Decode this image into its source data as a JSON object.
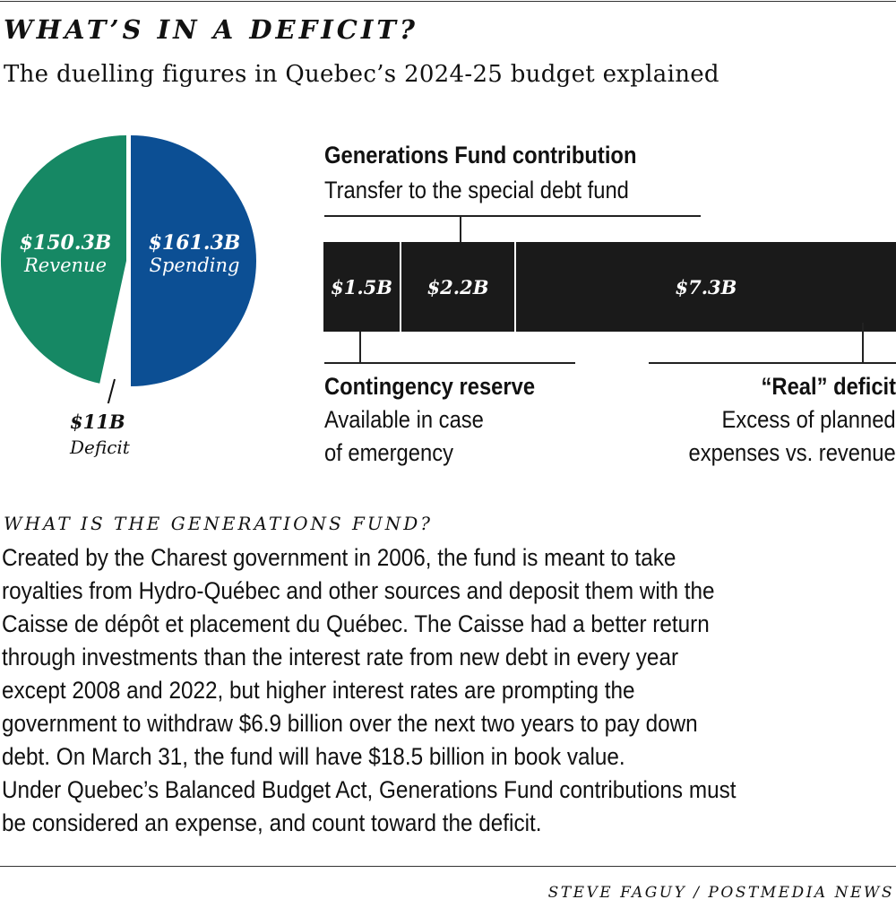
{
  "header": {
    "title": "WHAT’S IN A DEFICIT?",
    "subtitle": "The duelling figures in Quebec’s 2024-25 budget explained"
  },
  "chart_data": [
    {
      "type": "pie",
      "slices": [
        {
          "label": "Revenue",
          "value": 150.3,
          "display": "$150.3B",
          "color": "#168864"
        },
        {
          "label": "Spending",
          "value": 161.3,
          "display": "$161.3B",
          "color": "#0c4f94"
        },
        {
          "label": "Deficit",
          "value": 11,
          "display": "$11B",
          "color": "#ffffff"
        }
      ],
      "units": "billions CAD"
    },
    {
      "type": "bar",
      "orientation": "horizontal-stacked",
      "segments": [
        {
          "value": 1.5,
          "display": "$1.5B",
          "category": "Contingency reserve"
        },
        {
          "value": 2.2,
          "display": "$2.2B",
          "category": "Generations Fund contribution"
        },
        {
          "value": 7.3,
          "display": "$7.3B",
          "category": "“Real” deficit"
        }
      ],
      "total": 11,
      "color": "#1a1a1a",
      "annotations": {
        "generations": {
          "title": "Generations Fund contribution",
          "desc": "Transfer to the special debt fund"
        },
        "contingency": {
          "title": "Contingency reserve",
          "desc_lines": [
            "Available in case",
            "of emergency"
          ]
        },
        "real": {
          "title": "“Real” deficit",
          "desc_lines": [
            "Excess of planned",
            "expenses vs. revenue"
          ]
        }
      }
    }
  ],
  "section": {
    "heading": "WHAT IS THE GENERATIONS FUND?",
    "lines": [
      "Created by the Charest government in 2006, the fund is meant to take",
      "royalties from Hydro-Québec and other sources and deposit them with the",
      "Caisse de dépôt et placement du Québec. The Caisse had a better return",
      "through investments than the interest rate from new debt in every year",
      "except 2008 and 2022, but higher interest rates are prompting the",
      "government to withdraw $6.9 billion over the next two years to pay down",
      "debt. On March 31, the fund will have $18.5 billion in book value.",
      "Under Quebec’s Balanced Budget Act, Generations Fund contributions must",
      "be considered an expense, and count toward the deficit."
    ]
  },
  "credit": "STEVE FAGUY / POSTMEDIA NEWS"
}
